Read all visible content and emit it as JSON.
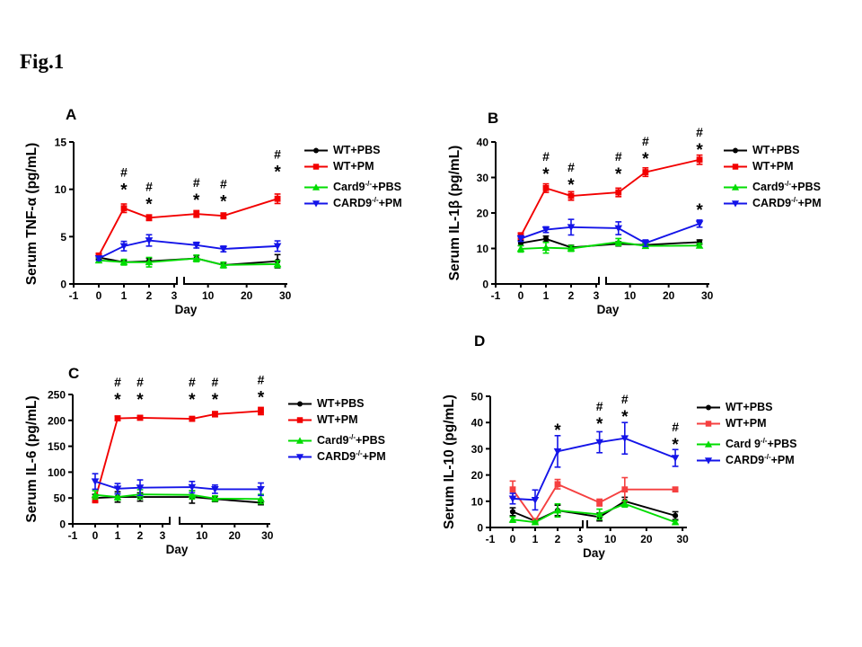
{
  "figure_label": "Fig.1",
  "colors": {
    "wt_pbs": "#000000",
    "wt_pm": "#f20000",
    "card9_pbs": "#00dc00",
    "card9_pm": "#1414e8"
  },
  "chart_data": [
    {
      "panel": "A",
      "type": "line",
      "ylabel": "Serum TNF-α (pg/mL)",
      "xlabel": "Day",
      "ylim": [
        0,
        15
      ],
      "yticks": [
        0,
        5,
        10,
        15
      ],
      "xticks": [
        -1,
        0,
        1,
        2,
        3,
        10,
        20,
        30
      ],
      "x_axis_break_after_day": 3,
      "x": [
        0,
        1,
        2,
        7,
        14,
        28
      ],
      "series": [
        {
          "name": "WT+PBS",
          "color": "#000000",
          "marker": "circle",
          "values": [
            2.8,
            2.3,
            2.4,
            2.7,
            2.0,
            2.4
          ],
          "errors": [
            0.2,
            0.2,
            0.3,
            0.3,
            0.25,
            0.7
          ]
        },
        {
          "name": "WT+PM",
          "color": "#f20000",
          "marker": "square",
          "values": [
            3.0,
            8.0,
            7.0,
            7.4,
            7.2,
            9.0
          ],
          "errors": [
            0.25,
            0.45,
            0.3,
            0.35,
            0.3,
            0.5
          ]
        },
        {
          "name": "Card9-/-+PBS",
          "color": "#00dc00",
          "marker": "triangle-up",
          "values": [
            2.5,
            2.3,
            2.3,
            2.7,
            2.0,
            2.1
          ],
          "errors": [
            0.25,
            0.3,
            0.5,
            0.35,
            0.3,
            0.35
          ]
        },
        {
          "name": "CARD9-/-+PM",
          "color": "#1414e8",
          "marker": "triangle-down",
          "values": [
            2.7,
            4.0,
            4.6,
            4.1,
            3.7,
            4.0
          ],
          "errors": [
            0.2,
            0.5,
            0.6,
            0.3,
            0.3,
            0.55
          ]
        }
      ],
      "legend": [
        {
          "pre": "WT+PBS",
          "sup": "",
          "post": ""
        },
        {
          "pre": "WT+PM",
          "sup": "",
          "post": ""
        },
        {
          "pre": "Card9",
          "sup": "-/-",
          "post": "+PBS"
        },
        {
          "pre": "CARD9",
          "sup": "-/-",
          "post": "+PM"
        }
      ],
      "annotations": [
        {
          "day": 1,
          "symbols": "#*",
          "y": 10.1
        },
        {
          "day": 2,
          "symbols": "#*",
          "y": 8.6
        },
        {
          "day": 7,
          "symbols": "#*",
          "y": 9.0
        },
        {
          "day": 14,
          "symbols": "#*",
          "y": 8.9
        },
        {
          "day": 28,
          "symbols": "#*",
          "y": 12.0
        }
      ]
    },
    {
      "panel": "B",
      "type": "line",
      "ylabel": "Serum IL-1β (pg/mL)",
      "xlabel": "Day",
      "ylim": [
        0,
        40
      ],
      "yticks": [
        0,
        10,
        20,
        30,
        40
      ],
      "xticks": [
        -1,
        0,
        1,
        2,
        3,
        10,
        20,
        30
      ],
      "x_axis_break_after_day": 3,
      "x": [
        0,
        1,
        2,
        7,
        14,
        28
      ],
      "series": [
        {
          "name": "WT+PBS",
          "color": "#000000",
          "marker": "circle",
          "values": [
            11.5,
            12.7,
            10.3,
            11.3,
            11.0,
            11.8
          ],
          "errors": [
            0.7,
            0.8,
            0.6,
            0.6,
            0.5,
            0.6
          ]
        },
        {
          "name": "WT+PM",
          "color": "#f20000",
          "marker": "square",
          "values": [
            13.5,
            27.0,
            24.8,
            25.8,
            31.5,
            35.0
          ],
          "errors": [
            0.9,
            1.2,
            1.2,
            1.2,
            1.2,
            1.3
          ]
        },
        {
          "name": "Card9-/-+PBS",
          "color": "#00dc00",
          "marker": "triangle-up",
          "values": [
            9.9,
            10.2,
            10.0,
            11.8,
            10.7,
            10.8
          ],
          "errors": [
            0.9,
            1.5,
            0.8,
            1.0,
            0.6,
            0.6
          ]
        },
        {
          "name": "CARD9-/-+PM",
          "color": "#1414e8",
          "marker": "triangle-down",
          "values": [
            12.8,
            15.3,
            16.0,
            15.7,
            11.5,
            17.0
          ],
          "errors": [
            0.8,
            0.8,
            2.2,
            1.8,
            0.9,
            1.0
          ]
        }
      ],
      "legend": [
        {
          "pre": "WT+PBS",
          "sup": "",
          "post": ""
        },
        {
          "pre": "WT+PM",
          "sup": "",
          "post": ""
        },
        {
          "pre": "Card9",
          "sup": "-/-",
          "post": "+PBS"
        },
        {
          "pre": "CARD9",
          "sup": "-/-",
          "post": "+PM"
        }
      ],
      "annotations": [
        {
          "day": 1,
          "symbols": "#*",
          "y": 31.4
        },
        {
          "day": 2,
          "symbols": "#*",
          "y": 28.4
        },
        {
          "day": 7,
          "symbols": "#*",
          "y": 31.4
        },
        {
          "day": 14,
          "symbols": "#*",
          "y": 35.7
        },
        {
          "day": 28,
          "symbols": "#*",
          "y": 38.2
        },
        {
          "day": 28,
          "symbols": "*",
          "y": 21.3
        }
      ]
    },
    {
      "panel": "C",
      "type": "line",
      "ylabel": "Serum IL-6 (pg/mL)",
      "xlabel": "Day",
      "ylim": [
        0,
        250
      ],
      "yticks": [
        0,
        50,
        100,
        150,
        200,
        250
      ],
      "xticks": [
        -1,
        0,
        1,
        2,
        3,
        10,
        20,
        30
      ],
      "x_axis_break_after_day": 3,
      "x": [
        0,
        1,
        2,
        7,
        14,
        28
      ],
      "series": [
        {
          "name": "WT+PBS",
          "color": "#000000",
          "marker": "circle",
          "values": [
            50,
            52,
            52,
            52,
            48,
            41
          ],
          "errors": [
            7,
            10,
            8,
            12,
            5,
            4
          ]
        },
        {
          "name": "WT+PM",
          "color": "#f20000",
          "marker": "square",
          "values": [
            47,
            204,
            205,
            203,
            212,
            218
          ],
          "errors": [
            6,
            4,
            4,
            4,
            5,
            7
          ]
        },
        {
          "name": "Card9-/-+PBS",
          "color": "#00dc00",
          "marker": "triangle-up",
          "values": [
            56,
            52,
            57,
            56,
            49,
            48
          ],
          "errors": [
            8,
            6,
            9,
            8,
            5,
            9
          ]
        },
        {
          "name": "CARD9-/-+PM",
          "color": "#1414e8",
          "marker": "triangle-down",
          "values": [
            82,
            68,
            70,
            71,
            67,
            67
          ],
          "errors": [
            15,
            10,
            15,
            11,
            8,
            12
          ]
        }
      ],
      "legend": [
        {
          "pre": "WT+PBS",
          "sup": "",
          "post": ""
        },
        {
          "pre": "WT+PM",
          "sup": "",
          "post": ""
        },
        {
          "pre": "Card9",
          "sup": "-/-",
          "post": "+PBS"
        },
        {
          "pre": "CARD9",
          "sup": "-/-",
          "post": "+PM"
        }
      ],
      "annotations": [
        {
          "day": 1,
          "symbols": "#*",
          "y": 243
        },
        {
          "day": 2,
          "symbols": "#*",
          "y": 243
        },
        {
          "day": 7,
          "symbols": "#*",
          "y": 243
        },
        {
          "day": 14,
          "symbols": "#*",
          "y": 243
        },
        {
          "day": 28,
          "symbols": "#*",
          "y": 247
        }
      ]
    },
    {
      "panel": "D",
      "type": "line",
      "ylabel": "Serum IL-10 (pg/mL)",
      "xlabel": "Day",
      "ylim": [
        0,
        50
      ],
      "yticks": [
        0,
        10,
        20,
        30,
        40,
        50
      ],
      "xticks": [
        -1,
        0,
        1,
        2,
        3,
        10,
        20,
        30
      ],
      "x_axis_break_after_day": 3,
      "x": [
        0,
        1,
        2,
        7,
        14,
        28
      ],
      "series": [
        {
          "name": "WT+PBS",
          "color": "#000000",
          "marker": "circle",
          "values": [
            6,
            2.5,
            6.5,
            4,
            10,
            4.5
          ],
          "errors": [
            1.5,
            0.5,
            2,
            1.5,
            1.5,
            1.5
          ]
        },
        {
          "name": "WT+PM",
          "color": "#f54040",
          "marker": "square",
          "values": [
            14.5,
            2.5,
            16.5,
            9.5,
            14.5,
            14.5
          ],
          "errors": [
            3.2,
            0.5,
            1.8,
            1.3,
            4.5,
            0.8
          ]
        },
        {
          "name": "Card9-/-+PBS",
          "color": "#00dc00",
          "marker": "triangle-up",
          "values": [
            3,
            2,
            6.5,
            5,
            9,
            2
          ],
          "errors": [
            1,
            0.4,
            2.5,
            2,
            1.2,
            0.6
          ]
        },
        {
          "name": "CARD9-/-+PM",
          "color": "#1414e8",
          "marker": "triangle-down",
          "values": [
            11,
            10.5,
            29,
            32.5,
            34,
            26.5
          ],
          "errors": [
            2,
            3.8,
            6,
            4,
            6,
            3.2
          ]
        }
      ],
      "legend": [
        {
          "pre": "WT+PBS",
          "sup": "",
          "post": ""
        },
        {
          "pre": "WT+PM",
          "sup": "",
          "post": ""
        },
        {
          "pre": "Card 9",
          "sup": "-/-",
          "post": "+PBS"
        },
        {
          "pre": "CARD9",
          "sup": "-/-",
          "post": "+PM"
        }
      ],
      "annotations": [
        {
          "day": 2,
          "symbols": "*",
          "y": 37.7
        },
        {
          "day": 7,
          "symbols": "#*",
          "y": 40.1
        },
        {
          "day": 14,
          "symbols": "#*",
          "y": 42.8
        },
        {
          "day": 28,
          "symbols": "#*",
          "y": 32.2
        }
      ]
    }
  ]
}
